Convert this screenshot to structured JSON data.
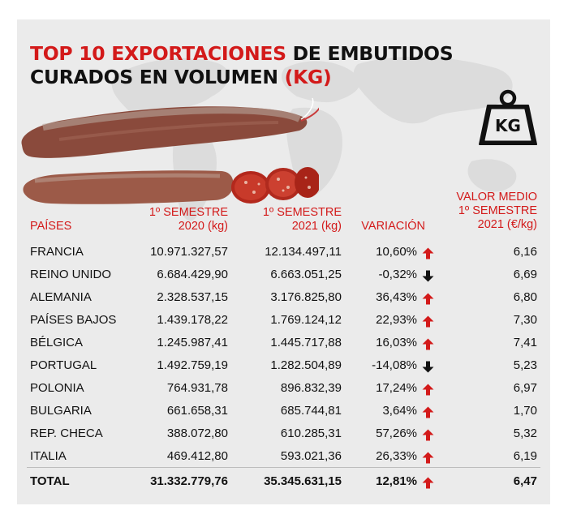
{
  "title": {
    "part1_red": "TOP 10 EXPORTACIONES",
    "part2": " DE EMBUTIDOS",
    "part3": "CURADOS EN VOLUMEN ",
    "part4_red": "(KG)"
  },
  "icon": {
    "name": "weight-kg-icon",
    "label": "KG"
  },
  "colors": {
    "accent": "#d31a1a",
    "up": "#d31a1a",
    "down": "#111111",
    "background": "#ebebeb"
  },
  "headers": {
    "country": "PAÍSES",
    "s2020_line1": "1º SEMESTRE",
    "s2020_line2": "2020 (kg)",
    "s2021_line1": "1º SEMESTRE",
    "s2021_line2": "2021 (kg)",
    "variation": "VARIACIÓN",
    "avg_line1": "VALOR MEDIO",
    "avg_line2": "1º SEMESTRE",
    "avg_line3": "2021 (€/kg)"
  },
  "rows": [
    {
      "country": "FRANCIA",
      "v2020": "10.971.327,57",
      "v2021": "12.134.497,11",
      "variation": "10,60%",
      "trend": "up",
      "avg": "6,16"
    },
    {
      "country": "REINO UNIDO",
      "v2020": "6.684.429,90",
      "v2021": "6.663.051,25",
      "variation": "-0,32%",
      "trend": "down",
      "avg": "6,69"
    },
    {
      "country": "ALEMANIA",
      "v2020": "2.328.537,15",
      "v2021": "3.176.825,80",
      "variation": "36,43%",
      "trend": "up",
      "avg": "6,80"
    },
    {
      "country": "PAÍSES BAJOS",
      "v2020": "1.439.178,22",
      "v2021": "1.769.124,12",
      "variation": "22,93%",
      "trend": "up",
      "avg": "7,30"
    },
    {
      "country": "BÉLGICA",
      "v2020": "1.245.987,41",
      "v2021": "1.445.717,88",
      "variation": "16,03%",
      "trend": "up",
      "avg": "7,41"
    },
    {
      "country": "PORTUGAL",
      "v2020": "1.492.759,19",
      "v2021": "1.282.504,89",
      "variation": "-14,08%",
      "trend": "down",
      "avg": "5,23"
    },
    {
      "country": "POLONIA",
      "v2020": "764.931,78",
      "v2021": "896.832,39",
      "variation": "17,24%",
      "trend": "up",
      "avg": "6,97"
    },
    {
      "country": "BULGARIA",
      "v2020": "661.658,31",
      "v2021": "685.744,81",
      "variation": "3,64%",
      "trend": "up",
      "avg": "1,70"
    },
    {
      "country": "REP. CHECA",
      "v2020": "388.072,80",
      "v2021": "610.285,31",
      "variation": "57,26%",
      "trend": "up",
      "avg": "5,32"
    },
    {
      "country": "ITALIA",
      "v2020": "469.412,80",
      "v2021": "593.021,36",
      "variation": "26,33%",
      "trend": "up",
      "avg": "6,19"
    }
  ],
  "total": {
    "country": "TOTAL",
    "v2020": "31.332.779,76",
    "v2021": "35.345.631,15",
    "variation": "12,81%",
    "trend": "up",
    "avg": "6,47"
  }
}
